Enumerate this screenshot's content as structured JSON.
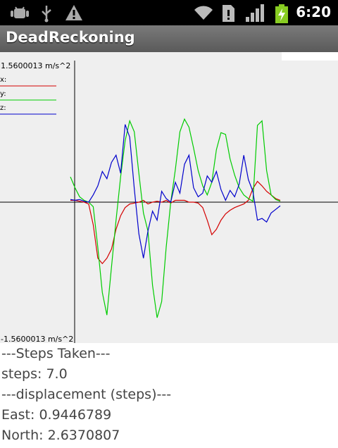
{
  "status_bar": {
    "time": "6:20",
    "icons": [
      "android-debug-icon",
      "usb-icon",
      "warning-icon",
      "wifi-icon",
      "sim-icon",
      "signal-icon",
      "battery-charging-icon"
    ]
  },
  "app": {
    "title": "DeadReckoning"
  },
  "plot": {
    "max_label": "1.5600013 m/s^2",
    "min_label": "-1.5600013 m/s^2",
    "legend": [
      {
        "label": "x:",
        "color": "#d40000"
      },
      {
        "label": "y:",
        "color": "#00cc00"
      },
      {
        "label": "z:",
        "color": "#0000cc"
      }
    ],
    "axis_color": "#000000",
    "background": "#efefef"
  },
  "chart_data": {
    "type": "line",
    "title": "",
    "ylim": [
      -1.5600013,
      1.5600013
    ],
    "yunit": "m/s^2",
    "series": [
      {
        "name": "x",
        "color": "#d40000",
        "values": [
          0.02,
          0.02,
          0.01,
          0.0,
          -0.02,
          -0.25,
          -0.62,
          -0.68,
          -0.62,
          -0.52,
          -0.3,
          -0.15,
          -0.06,
          -0.02,
          -0.01,
          -0.0,
          0.02,
          -0.02,
          0.0,
          0.01,
          0.0,
          0.02,
          -0.01,
          0.02,
          0.02,
          0.02,
          0.0,
          0.0,
          -0.01,
          -0.06,
          -0.2,
          -0.36,
          -0.3,
          -0.2,
          -0.13,
          -0.09,
          -0.06,
          -0.04,
          -0.02,
          0.02,
          0.15,
          0.23,
          0.18,
          0.12,
          0.08,
          0.04,
          0.02
        ]
      },
      {
        "name": "y",
        "color": "#00cc00",
        "values": [
          0.28,
          0.16,
          0.06,
          0.02,
          0.0,
          -0.05,
          -0.5,
          -1.0,
          -1.25,
          -0.72,
          -0.2,
          0.28,
          0.68,
          0.9,
          0.78,
          0.32,
          -0.12,
          -0.32,
          -0.92,
          -1.28,
          -1.1,
          -0.5,
          0.0,
          0.36,
          0.78,
          0.92,
          0.83,
          0.6,
          0.35,
          0.18,
          0.08,
          0.22,
          0.58,
          0.77,
          0.75,
          0.48,
          0.3,
          0.16,
          0.08,
          0.04,
          0.01,
          0.85,
          0.9,
          0.35,
          0.08,
          0.03,
          0.01
        ]
      },
      {
        "name": "z",
        "color": "#0000cc",
        "values": [
          0.03,
          0.02,
          0.03,
          0.01,
          0.0,
          0.08,
          0.18,
          0.34,
          0.26,
          0.44,
          0.52,
          0.32,
          0.86,
          0.72,
          0.15,
          -0.35,
          -0.62,
          -0.32,
          -0.1,
          -0.2,
          0.12,
          0.04,
          0.0,
          0.22,
          0.1,
          0.42,
          0.52,
          0.16,
          0.06,
          0.1,
          0.29,
          0.22,
          0.34,
          0.14,
          0.02,
          0.13,
          0.06,
          0.2,
          0.52,
          0.25,
          0.12,
          -0.2,
          -0.18,
          -0.22,
          -0.12,
          -0.08,
          -0.04
        ]
      }
    ]
  },
  "info": {
    "steps_header": "---Steps Taken---",
    "steps": "steps: 7.0",
    "displacement_header": "---displacement (steps)---",
    "east": "East: 0.9446789",
    "north": "North: 2.6370807"
  }
}
